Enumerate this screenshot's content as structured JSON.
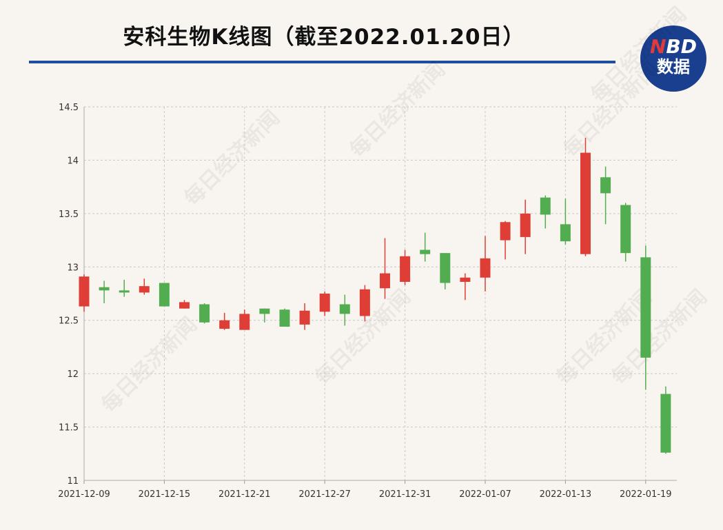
{
  "chart_data": {
    "type": "candlestick",
    "title": "安科生物K线图（截至2022.01.20日）",
    "ylim": [
      11,
      14.5
    ],
    "yticks": [
      "11",
      "11.5",
      "12",
      "12.5",
      "13",
      "13.5",
      "14",
      "14.5"
    ],
    "xtick_labels": [
      "2021-12-09",
      "2021-12-15",
      "2021-12-21",
      "2021-12-27",
      "2021-12-31",
      "2022-01-07",
      "2022-01-13",
      "2022-01-19"
    ],
    "grid": true,
    "colors": {
      "up": "#de3e35",
      "down": "#52ad50"
    },
    "candles": [
      {
        "date": "2021-12-09",
        "open": 12.63,
        "close": 12.91,
        "high": 12.93,
        "low": 12.58
      },
      {
        "date": "2021-12-10",
        "open": 12.81,
        "close": 12.78,
        "high": 12.87,
        "low": 12.66
      },
      {
        "date": "2021-12-13",
        "open": 12.78,
        "close": 12.76,
        "high": 12.88,
        "low": 12.72
      },
      {
        "date": "2021-12-14",
        "open": 12.76,
        "close": 12.82,
        "high": 12.89,
        "low": 12.74
      },
      {
        "date": "2021-12-15",
        "open": 12.85,
        "close": 12.63,
        "high": 12.85,
        "low": 12.63
      },
      {
        "date": "2021-12-16",
        "open": 12.61,
        "close": 12.67,
        "high": 12.69,
        "low": 12.61
      },
      {
        "date": "2021-12-17",
        "open": 12.65,
        "close": 12.48,
        "high": 12.66,
        "low": 12.47
      },
      {
        "date": "2021-12-20",
        "open": 12.42,
        "close": 12.5,
        "high": 12.57,
        "low": 12.41
      },
      {
        "date": "2021-12-21",
        "open": 12.41,
        "close": 12.56,
        "high": 12.6,
        "low": 12.41
      },
      {
        "date": "2021-12-22",
        "open": 12.61,
        "close": 12.56,
        "high": 12.61,
        "low": 12.48
      },
      {
        "date": "2021-12-23",
        "open": 12.6,
        "close": 12.44,
        "high": 12.61,
        "low": 12.44
      },
      {
        "date": "2021-12-24",
        "open": 12.46,
        "close": 12.59,
        "high": 12.66,
        "low": 12.41
      },
      {
        "date": "2021-12-27",
        "open": 12.58,
        "close": 12.75,
        "high": 12.77,
        "low": 12.54
      },
      {
        "date": "2021-12-28",
        "open": 12.65,
        "close": 12.56,
        "high": 12.74,
        "low": 12.45
      },
      {
        "date": "2021-12-29",
        "open": 12.54,
        "close": 12.79,
        "high": 12.83,
        "low": 12.49
      },
      {
        "date": "2021-12-30",
        "open": 12.8,
        "close": 12.94,
        "high": 13.27,
        "low": 12.7
      },
      {
        "date": "2021-12-31",
        "open": 12.86,
        "close": 13.1,
        "high": 13.16,
        "low": 12.83
      },
      {
        "date": "2022-01-04",
        "open": 13.16,
        "close": 13.12,
        "high": 13.32,
        "low": 13.05
      },
      {
        "date": "2022-01-05",
        "open": 13.13,
        "close": 12.85,
        "high": 13.13,
        "low": 12.79
      },
      {
        "date": "2022-01-06",
        "open": 12.86,
        "close": 12.9,
        "high": 12.94,
        "low": 12.69
      },
      {
        "date": "2022-01-07",
        "open": 12.9,
        "close": 13.08,
        "high": 13.29,
        "low": 12.77
      },
      {
        "date": "2022-01-10",
        "open": 13.25,
        "close": 13.42,
        "high": 13.43,
        "low": 13.07
      },
      {
        "date": "2022-01-11",
        "open": 13.28,
        "close": 13.5,
        "high": 13.63,
        "low": 13.12
      },
      {
        "date": "2022-01-12",
        "open": 13.65,
        "close": 13.49,
        "high": 13.67,
        "low": 13.36
      },
      {
        "date": "2022-01-13",
        "open": 13.4,
        "close": 13.24,
        "high": 13.64,
        "low": 13.21
      },
      {
        "date": "2022-01-14",
        "open": 13.12,
        "close": 14.07,
        "high": 14.21,
        "low": 13.1
      },
      {
        "date": "2022-01-17",
        "open": 13.84,
        "close": 13.69,
        "high": 13.94,
        "low": 13.4
      },
      {
        "date": "2022-01-18",
        "open": 13.58,
        "close": 13.13,
        "high": 13.6,
        "low": 13.05
      },
      {
        "date": "2022-01-19",
        "open": 13.09,
        "close": 12.15,
        "high": 13.2,
        "low": 11.85
      },
      {
        "date": "2022-01-20",
        "open": 11.81,
        "close": 11.26,
        "high": 11.88,
        "low": 11.25
      }
    ]
  },
  "logo": {
    "line1_n": "N",
    "line1_rest": "BD",
    "line2": "数据"
  },
  "watermark": "每日经济新闻"
}
